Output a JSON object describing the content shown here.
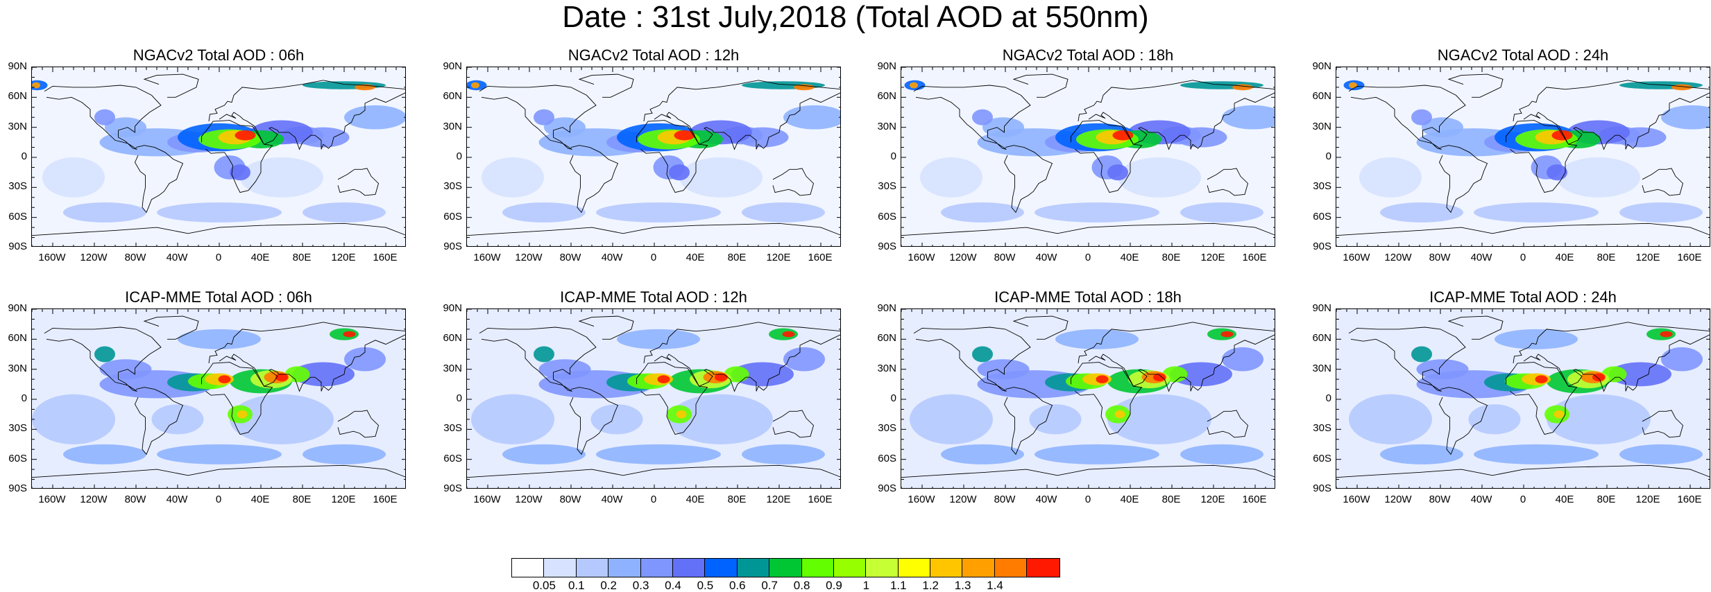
{
  "title": "Date : 31st July,2018 (Total AOD at 550nm)",
  "panels": [
    {
      "title": "NGACv2 Total AOD : 06h",
      "model": "ngac"
    },
    {
      "title": "NGACv2 Total AOD : 12h",
      "model": "ngac"
    },
    {
      "title": "NGACv2 Total AOD : 18h",
      "model": "ngac"
    },
    {
      "title": "NGACv2 Total AOD : 24h",
      "model": "ngac"
    },
    {
      "title": "ICAP-MME Total AOD : 06h",
      "model": "icap"
    },
    {
      "title": "ICAP-MME Total AOD : 12h",
      "model": "icap"
    },
    {
      "title": "ICAP-MME Total AOD : 18h",
      "model": "icap"
    },
    {
      "title": "ICAP-MME Total AOD : 24h",
      "model": "icap"
    }
  ],
  "lat_labels": [
    "90N",
    "60N",
    "30N",
    "0",
    "30S",
    "60S",
    "90S"
  ],
  "lon_labels": [
    "160W",
    "120W",
    "80W",
    "40W",
    "0",
    "40E",
    "80E",
    "120E",
    "160E"
  ],
  "lon_values": [
    -160,
    -120,
    -80,
    -40,
    0,
    40,
    80,
    120,
    160
  ],
  "lat_values": [
    90,
    60,
    30,
    0,
    -30,
    -60,
    -90
  ],
  "colorbar": {
    "colors": [
      "#ffffff",
      "#d6e2ff",
      "#b5c9ff",
      "#8eb2ff",
      "#7f96ff",
      "#6370f8",
      "#0063ff",
      "#009696",
      "#00c633",
      "#63ff00",
      "#96ff00",
      "#c6ff33",
      "#ffff00",
      "#ffc600",
      "#ffa000",
      "#ff7c00",
      "#ff1900"
    ],
    "labels": [
      "0.05",
      "0.1",
      "0.2",
      "0.3",
      "0.4",
      "0.5",
      "0.6",
      "0.7",
      "0.8",
      "0.9",
      "1",
      "1.1",
      "1.2",
      "1.3",
      "1.4"
    ]
  }
}
